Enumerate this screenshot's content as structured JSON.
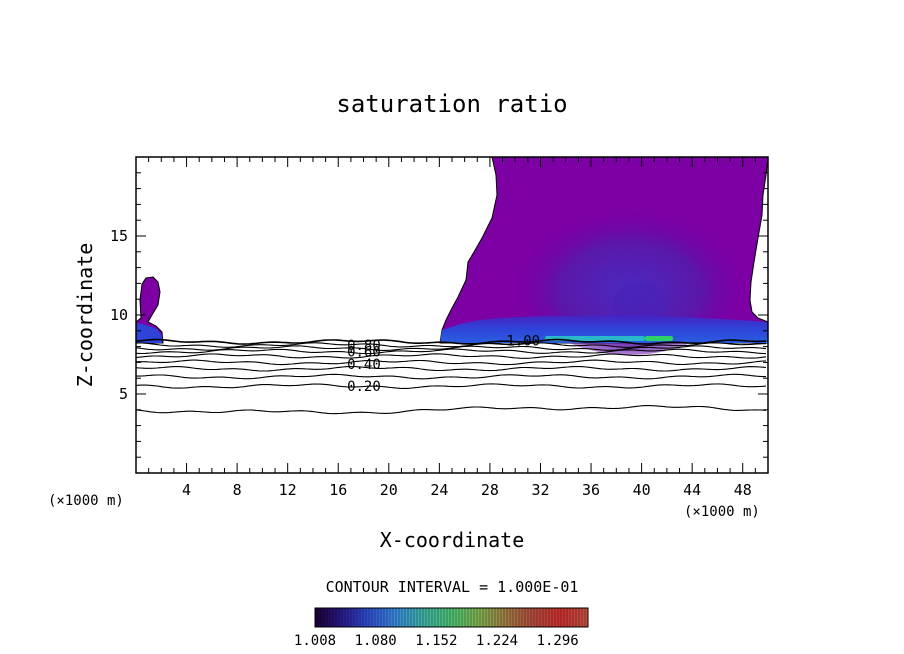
{
  "chart_data": {
    "type": "heatmap",
    "title": "saturation ratio",
    "xlabel": "X-coordinate",
    "ylabel": "Z-coordinate",
    "x_unit": "(×1000 m)",
    "y_unit": "(×1000 m)",
    "xlim": [
      0,
      50
    ],
    "ylim": [
      0,
      20
    ],
    "x_ticks": [
      "4",
      "8",
      "12",
      "16",
      "20",
      "24",
      "28",
      "32",
      "36",
      "40",
      "44",
      "48"
    ],
    "y_ticks": [
      "5",
      "10",
      "15"
    ],
    "x_tick_values": [
      4,
      8,
      12,
      16,
      20,
      24,
      28,
      32,
      36,
      40,
      44,
      48
    ],
    "y_tick_values": [
      5,
      10,
      15
    ],
    "contour_interval_text": "CONTOUR INTERVAL = 1.000E-01",
    "contour_line_labels": [
      {
        "text": "0.80",
        "level": 0.8,
        "x": 16.7,
        "z": 8.1
      },
      {
        "text": "0.60",
        "level": 0.6,
        "x": 16.7,
        "z": 7.7
      },
      {
        "text": "0.40",
        "level": 0.4,
        "x": 16.7,
        "z": 6.9
      },
      {
        "text": "0.20",
        "level": 0.2,
        "x": 16.7,
        "z": 5.5
      },
      {
        "text": "1.00",
        "level": 1.0,
        "x": 29.3,
        "z": 8.4
      }
    ],
    "contour_levels_z": [
      8.3,
      8.1,
      7.9,
      7.7,
      7.4,
      7.0,
      6.6,
      6.1,
      5.5,
      4.0
    ],
    "colorbar": {
      "ticks": [
        "1.008",
        "1.080",
        "1.152",
        "1.224",
        "1.296"
      ],
      "min": 1.008,
      "max": 1.332,
      "colors": [
        "#1a0033",
        "#2a1a8a",
        "#2f4fcf",
        "#3a8ad8",
        "#3fb0a0",
        "#4cc070",
        "#7fb04f",
        "#a07a45",
        "#b04a3a",
        "#c83030",
        "#c05040"
      ]
    },
    "regions": [
      {
        "name": "left-small-cloud",
        "x_range": [
          0,
          2.2
        ],
        "z_range": [
          8.2,
          12.3
        ],
        "value": 1.02
      },
      {
        "name": "main-cloud",
        "x_range": [
          24,
          50
        ],
        "z_range": [
          8.2,
          20
        ],
        "value": 1.03
      }
    ],
    "colors": {
      "cloud_purple": "#7c00a4",
      "cloud_core": "#5b12a8",
      "cloud_base_blue": "#2e43d8",
      "cloud_base_cyan": "#2ab8c8",
      "cloud_base_green": "#2fcf6a"
    }
  }
}
